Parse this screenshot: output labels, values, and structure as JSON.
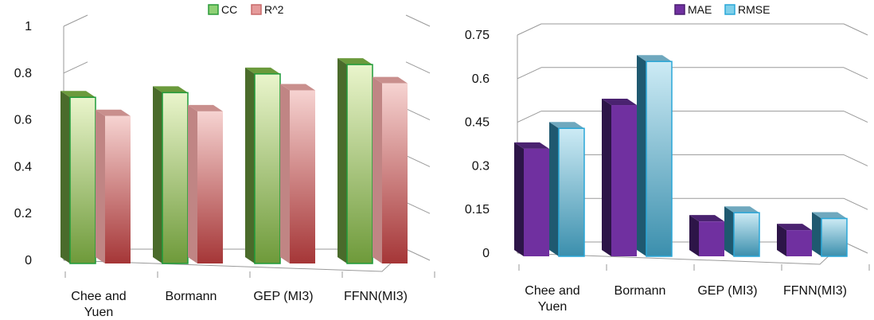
{
  "chart_data": [
    {
      "type": "bar",
      "categories": [
        [
          "Chee and",
          "Yuen"
        ],
        [
          "Bormann"
        ],
        [
          "GEP (MI3)"
        ],
        [
          "FFNN(MI3)"
        ]
      ],
      "series": [
        {
          "name": "CC",
          "values": [
            0.71,
            0.73,
            0.81,
            0.85
          ],
          "color": "#4f7a28"
        },
        {
          "name": "R^2",
          "values": [
            0.63,
            0.65,
            0.74,
            0.77
          ],
          "color": "#a83a3a"
        }
      ],
      "ylim": [
        0,
        1
      ],
      "yticks": [
        "0",
        "0.2",
        "0.4",
        "0.6",
        "0.8",
        "1"
      ],
      "legend": "top",
      "grid": false
    },
    {
      "type": "bar",
      "categories": [
        [
          "Chee and",
          "Yuen"
        ],
        [
          "Bormann"
        ],
        [
          "GEP (MI3)"
        ],
        [
          "FFNN(MI3)"
        ]
      ],
      "series": [
        {
          "name": "MAE",
          "values": [
            0.37,
            0.52,
            0.12,
            0.09
          ],
          "color": "#7030a0"
        },
        {
          "name": "RMSE",
          "values": [
            0.44,
            0.67,
            0.15,
            0.13
          ],
          "color": "#4bacc6"
        }
      ],
      "ylim": [
        0,
        0.75
      ],
      "yticks": [
        "0",
        "0.15",
        "0.3",
        "0.45",
        "0.6",
        "0.75"
      ],
      "legend": "top",
      "grid": true
    }
  ]
}
